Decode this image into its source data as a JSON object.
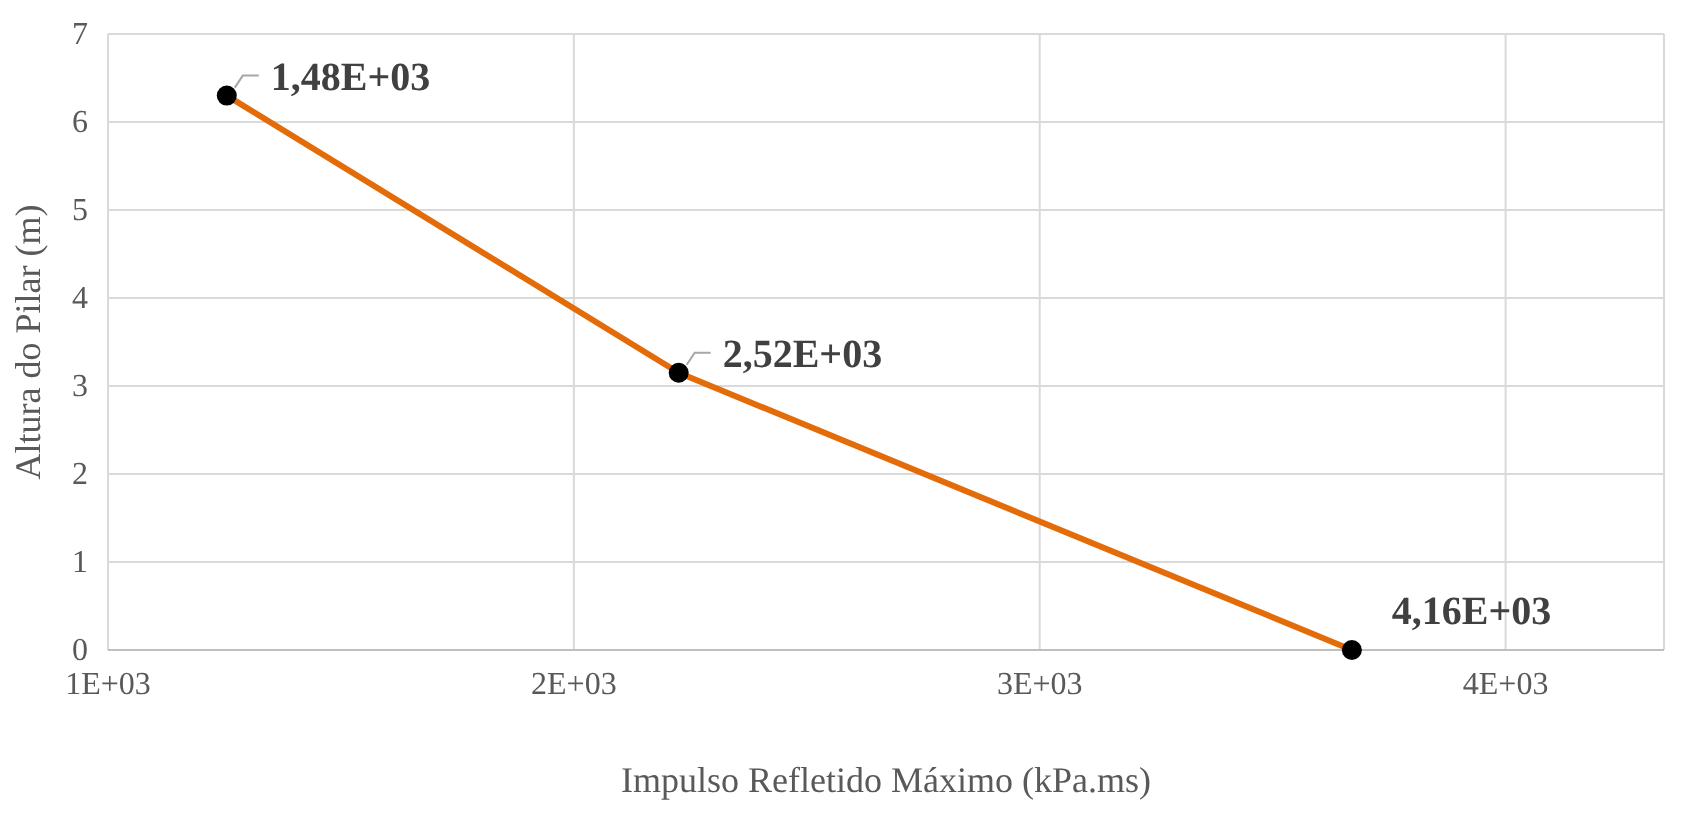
{
  "chart_data": {
    "type": "line",
    "xlabel": "Impulso Refletido Máximo (kPa.ms)",
    "ylabel": "Altura do Pilar (m)",
    "x": [
      1255,
      2225,
      3670
    ],
    "series": [
      {
        "color": "#e36c09",
        "values": [
          6.3,
          3.15,
          0
        ],
        "marker": "none"
      },
      {
        "type": "scatter",
        "color": "#000000",
        "values": [
          6.3,
          3.15,
          0
        ],
        "marker": "circle"
      }
    ],
    "xlim": [
      1000,
      4340
    ],
    "xticks": [
      {
        "value": 1000,
        "label": "1E+03"
      },
      {
        "value": 2000,
        "label": "2E+03"
      },
      {
        "value": 3000,
        "label": "3E+03"
      },
      {
        "value": 4000,
        "label": "4E+03"
      }
    ],
    "ylim": [
      0,
      7
    ],
    "yticks": [
      0,
      1,
      2,
      3,
      4,
      5,
      6,
      7
    ],
    "grid": true,
    "annotations": [
      {
        "text": "1,48E+03",
        "x": 1255,
        "y": 6.3
      },
      {
        "text": "2,52E+03",
        "x": 2225,
        "y": 3.15
      },
      {
        "text": "4,16E+03",
        "x": 3670,
        "y": 0
      }
    ]
  }
}
